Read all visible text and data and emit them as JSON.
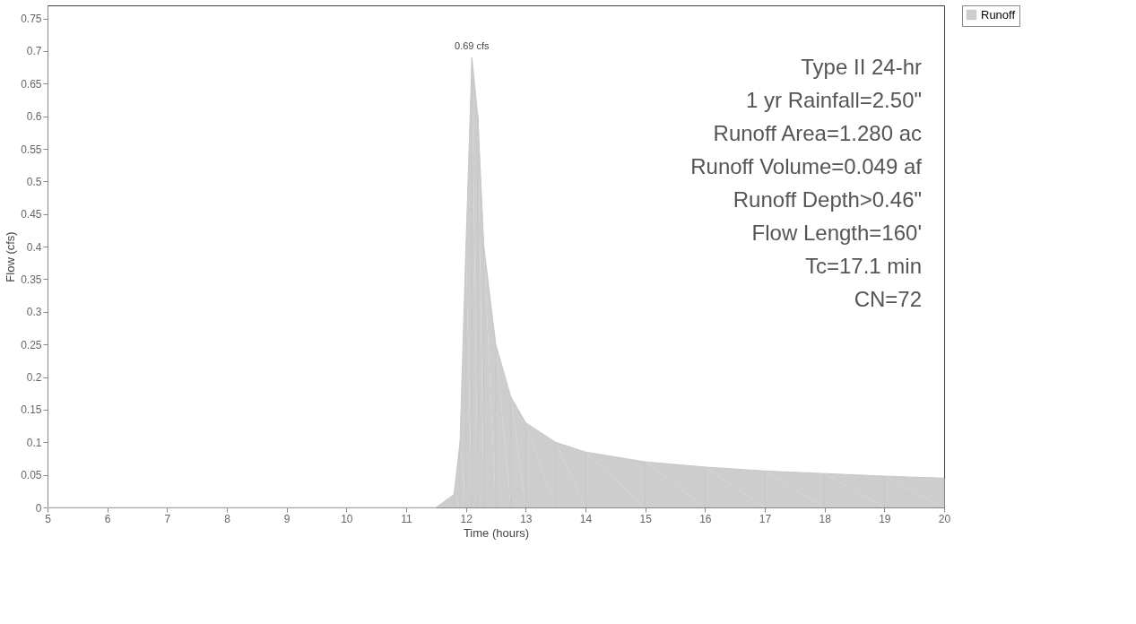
{
  "chart_data": {
    "type": "area",
    "xlabel": "Time (hours)",
    "ylabel": "Flow (cfs)",
    "x": [
      5,
      11.5,
      11.8,
      11.9,
      12.0,
      12.1,
      12.2,
      12.3,
      12.5,
      12.75,
      13,
      13.5,
      14,
      15,
      16,
      17,
      18,
      19,
      20
    ],
    "series": [
      {
        "name": "Runoff",
        "color": "#c8c8c8",
        "values": [
          0,
          0,
          0.02,
          0.1,
          0.4,
          0.69,
          0.6,
          0.4,
          0.25,
          0.17,
          0.13,
          0.1,
          0.085,
          0.07,
          0.062,
          0.056,
          0.052,
          0.048,
          0.045
        ]
      }
    ],
    "xlim": [
      5,
      20
    ],
    "xticks": [
      5,
      6,
      7,
      8,
      9,
      10,
      11,
      12,
      13,
      14,
      15,
      16,
      17,
      18,
      19,
      20
    ],
    "ylim": [
      0,
      0.77
    ],
    "yticks": [
      0,
      0.05,
      0.1,
      0.15,
      0.2,
      0.25,
      0.3,
      0.35,
      0.4,
      0.45,
      0.5,
      0.55,
      0.6,
      0.65,
      0.7,
      0.75
    ],
    "grid": false,
    "legend": "top right",
    "annotations": [
      {
        "text": "0.69 cfs",
        "x": 12.1,
        "y": 0.69
      },
      "Type II 24-hr",
      "1 yr Rainfall=2.50\"",
      "Runoff Area=1.280 ac",
      "Runoff Volume=0.049 af",
      "Runoff Depth>0.46\"",
      "Flow Length=160'",
      "Tc=17.1 min",
      "CN=72"
    ]
  }
}
